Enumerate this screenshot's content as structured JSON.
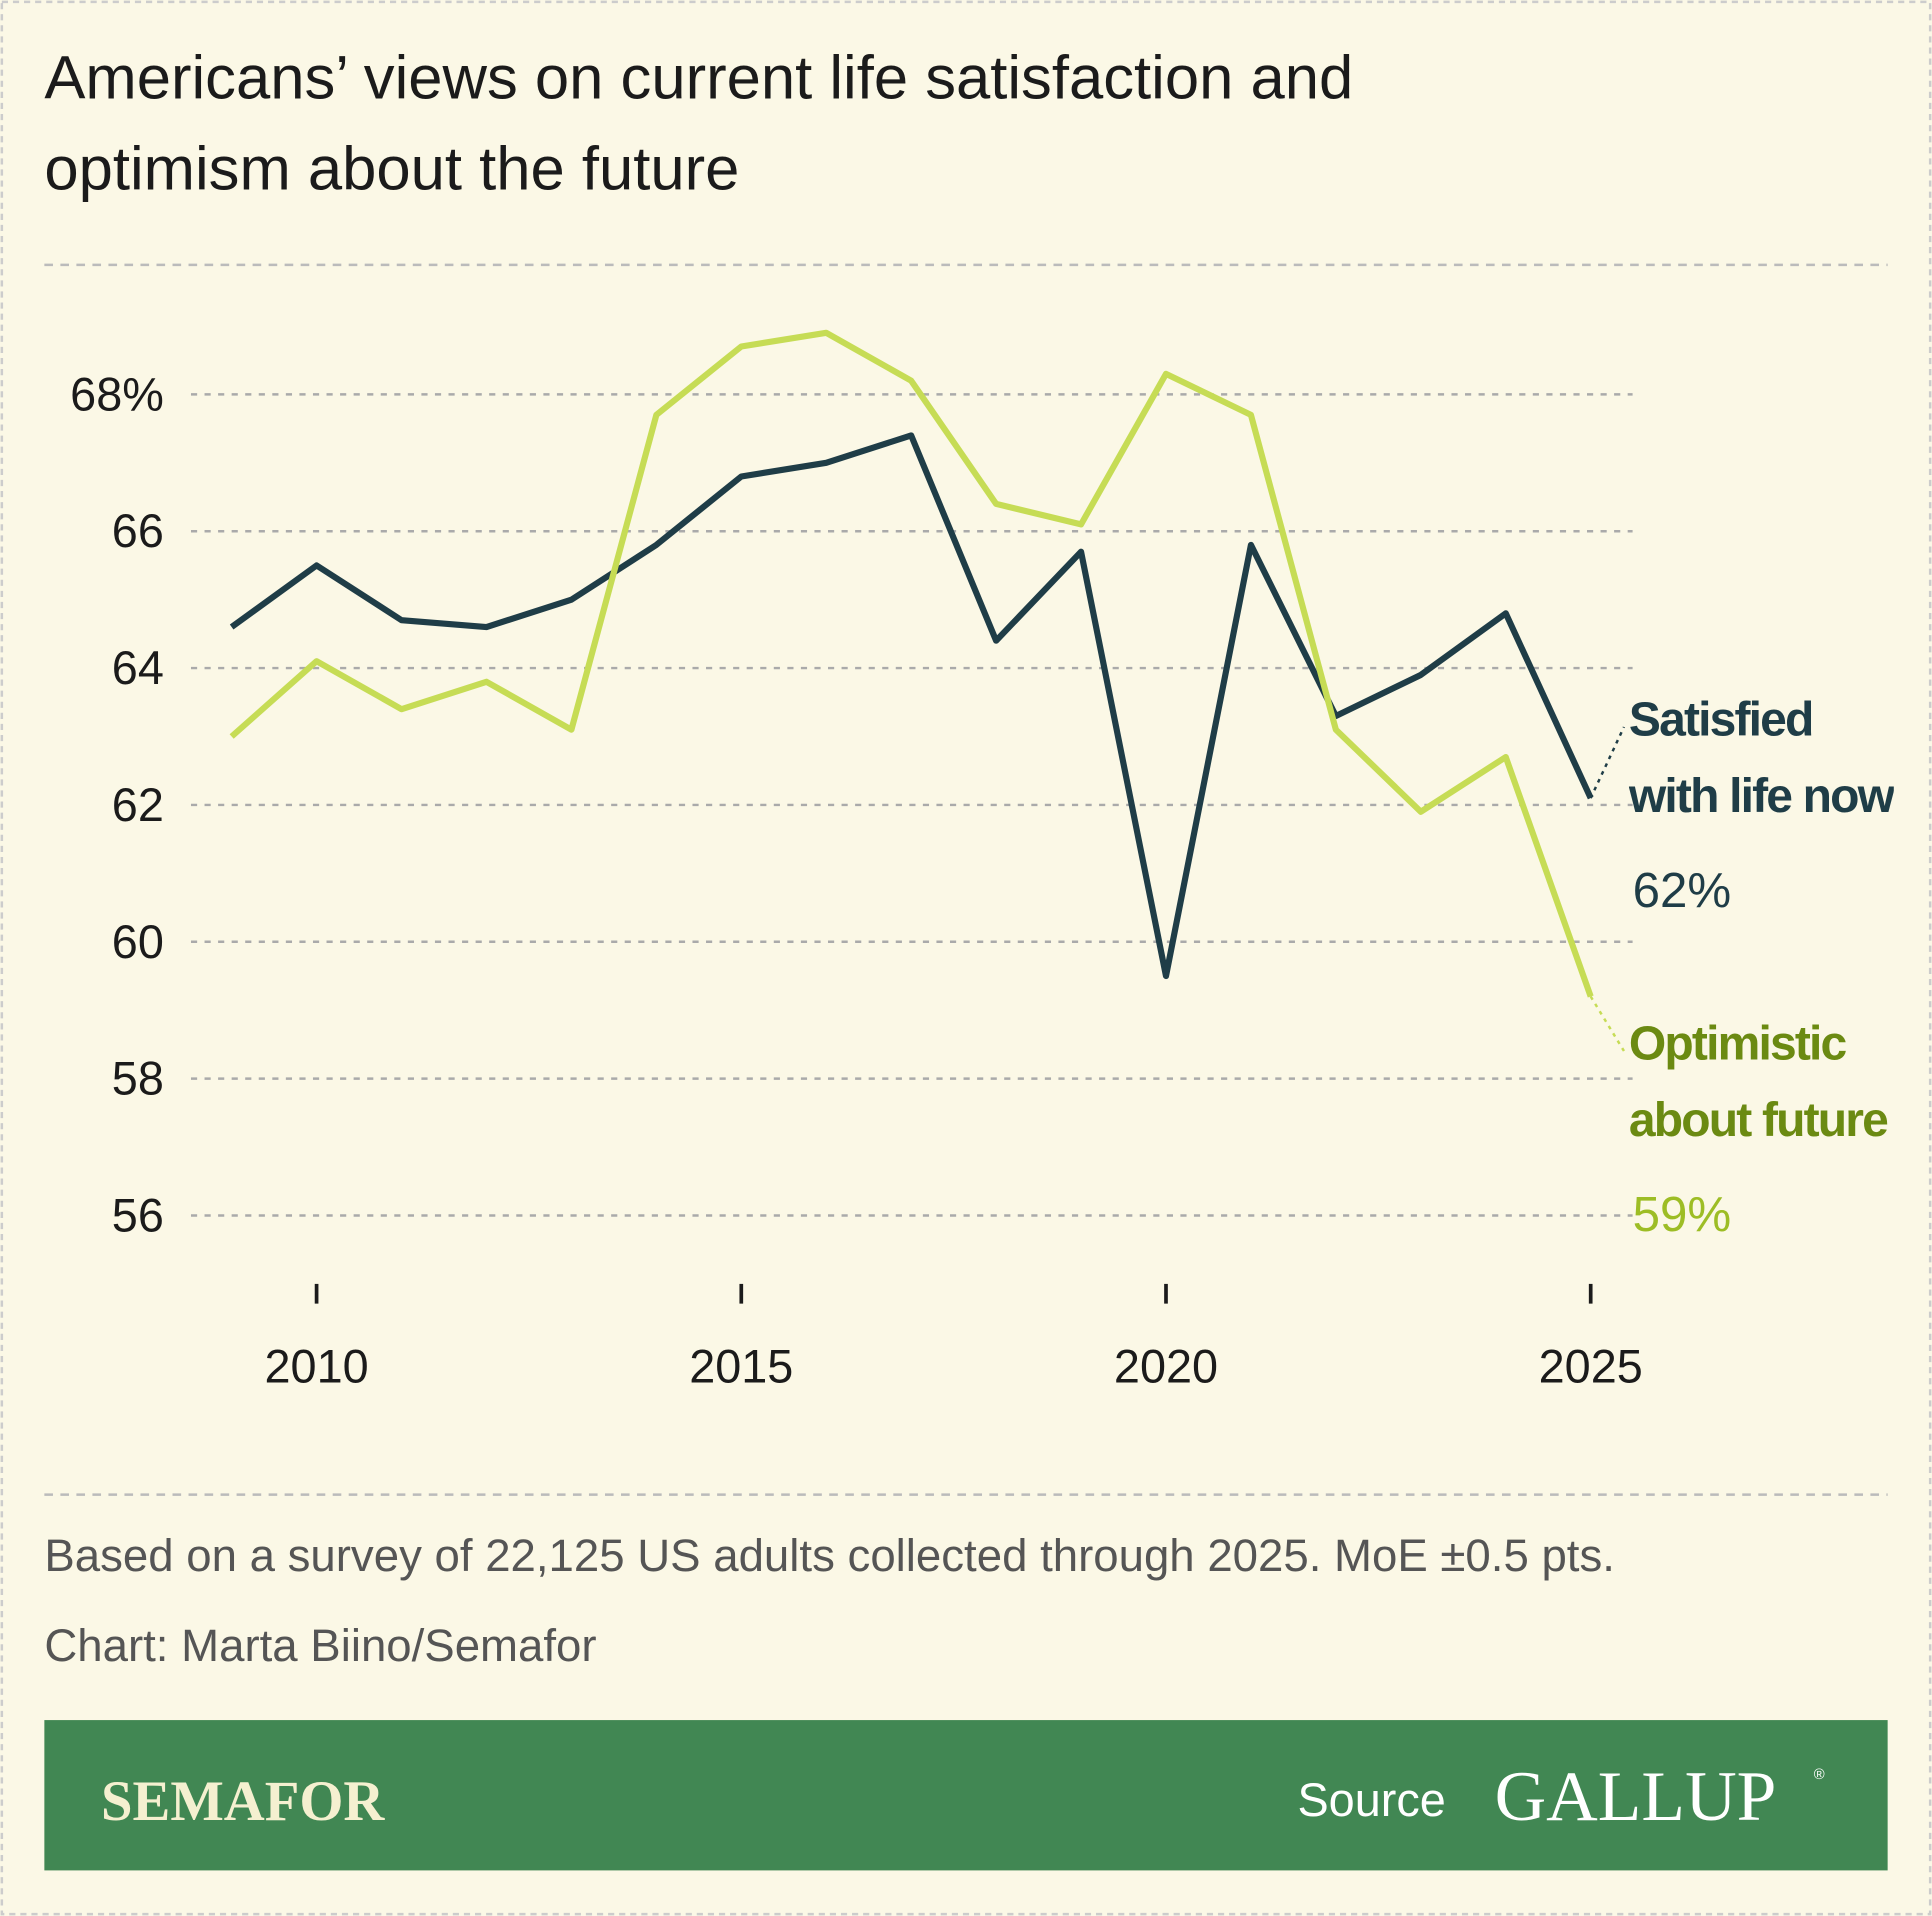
{
  "chart_data": {
    "type": "line",
    "title": [
      "Americans’ views on current life satisfaction and",
      "optimism about the future"
    ],
    "x": [
      2009,
      2010,
      2011,
      2012,
      2013,
      2014,
      2015,
      2016,
      2017,
      2018,
      2019,
      2020,
      2021,
      2022,
      2023,
      2024,
      2025
    ],
    "series": [
      {
        "name": "Satisfied with life now",
        "color": "#1f3d47",
        "label_color": "#1f3d47",
        "value_label_color": "#1f3d47",
        "values": [
          64.6,
          65.5,
          64.7,
          64.6,
          65.0,
          65.8,
          66.8,
          67.0,
          67.4,
          64.4,
          65.7,
          59.5,
          65.8,
          63.3,
          63.9,
          64.8,
          62.1
        ],
        "value_labels": [
          null,
          null,
          null,
          null,
          null,
          null,
          null,
          null,
          null,
          null,
          null,
          null,
          null,
          null,
          null,
          null,
          "62%"
        ]
      },
      {
        "name": "Optimistic about future",
        "color": "#c6dc55",
        "label_color": "#6b8a12",
        "value_label_color": "#9dbd25",
        "values": [
          63.0,
          64.1,
          63.4,
          63.8,
          63.1,
          67.7,
          68.7,
          68.9,
          68.2,
          66.4,
          66.1,
          68.3,
          67.7,
          63.1,
          61.9,
          62.7,
          59.2
        ],
        "value_labels": [
          null,
          null,
          null,
          null,
          null,
          null,
          null,
          null,
          null,
          null,
          null,
          null,
          null,
          null,
          null,
          null,
          "59%"
        ]
      }
    ],
    "xlim": [
      2009,
      2025
    ],
    "xticks": [
      2010,
      2015,
      2020,
      2025
    ],
    "ylim": [
      55,
      70
    ],
    "yticks": [
      56,
      58,
      60,
      62,
      64,
      66,
      {
        "value": 68,
        "label": "68%"
      }
    ],
    "grid": true,
    "note": "Based on a survey of 22,125 US adults collected through 2025. MoE ±0.5 pts.",
    "credit": "Chart: Marta Biino/Semafor",
    "footer": {
      "brand": "SEMAFOR",
      "source_label": "Source",
      "source": "GALLUP",
      "source_mark": "®"
    }
  }
}
